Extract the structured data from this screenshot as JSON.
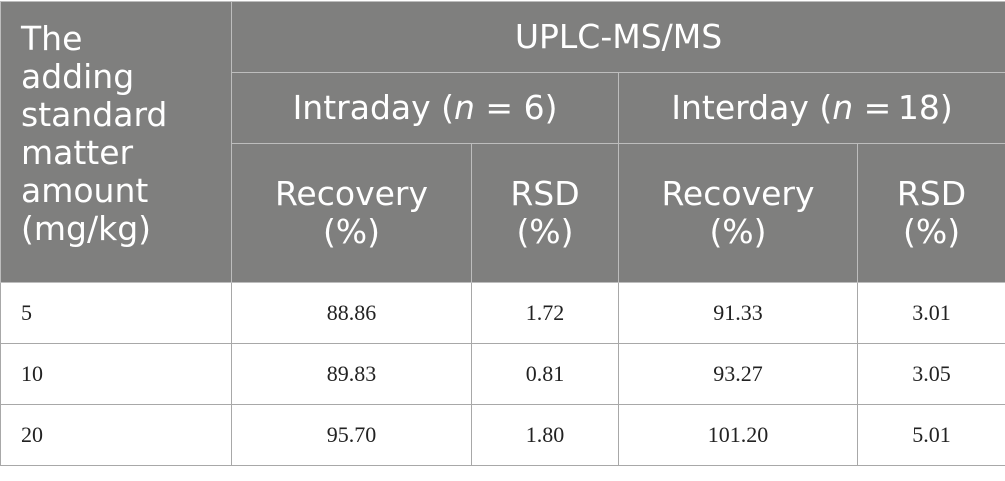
{
  "table": {
    "corner_header_lines": [
      "The",
      "adding",
      "standard",
      "matter",
      "amount",
      "(mg/kg)"
    ],
    "method_header": "UPLC-MS/MS",
    "groups": [
      {
        "label_before": "Intraday (",
        "n_symbol": "n",
        "label_after": " = 6)"
      },
      {
        "label_before": "Interday (",
        "n_symbol": "n",
        "label_after": " = 18)"
      }
    ],
    "subheaders": [
      {
        "line1": "Recovery",
        "line2": "(%)"
      },
      {
        "line1": "RSD",
        "line2": "(%)"
      },
      {
        "line1": "Recovery",
        "line2": "(%)"
      },
      {
        "line1": "RSD",
        "line2": "(%)"
      }
    ],
    "rows": [
      {
        "amount": "5",
        "intra_recovery": "88.86",
        "intra_rsd": "1.72",
        "inter_recovery": "91.33",
        "inter_rsd": "3.01"
      },
      {
        "amount": "10",
        "intra_recovery": "89.83",
        "intra_rsd": "0.81",
        "inter_recovery": "93.27",
        "inter_rsd": "3.05"
      },
      {
        "amount": "20",
        "intra_recovery": "95.70",
        "intra_rsd": "1.80",
        "inter_recovery": "101.20",
        "inter_rsd": "5.01"
      }
    ]
  }
}
